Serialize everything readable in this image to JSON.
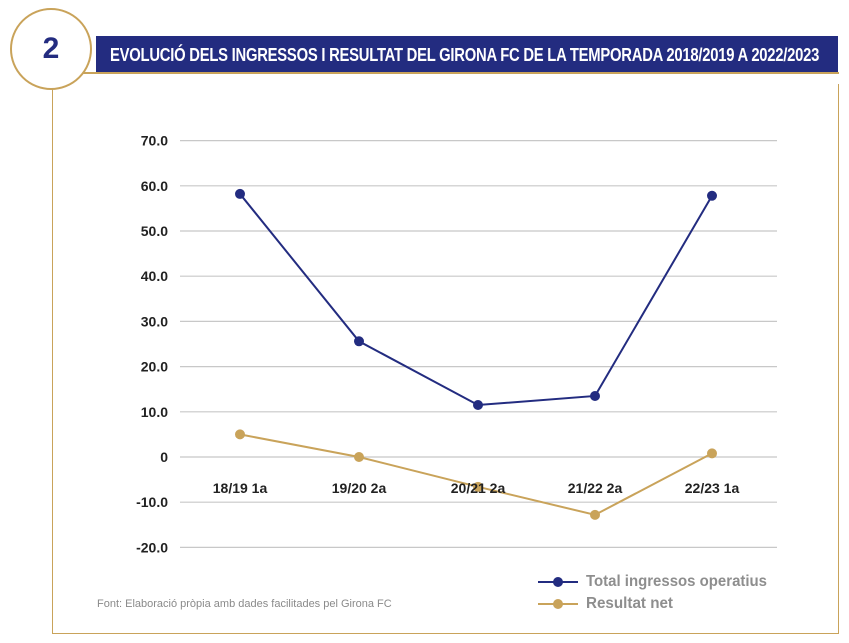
{
  "header": {
    "number": "2",
    "title": "EVOLUCIÓ DELS INGRESSOS I RESULTAT DEL GIRONA FC DE LA TEMPORADA 2018/2019 A 2022/2023"
  },
  "source": "Font: Elaboració pròpia amb dades facilitades pel Girona FC",
  "colors": {
    "navy": "#232c80",
    "gold": "#c9a35a",
    "grid": "#c8c8c8"
  },
  "chart_data": {
    "type": "line",
    "categories": [
      "18/19 1a",
      "19/20 2a",
      "20/21 2a",
      "21/22 2a",
      "22/23 1a"
    ],
    "series": [
      {
        "name": "Total ingressos operatius",
        "color": "#232c80",
        "values": [
          58.2,
          25.6,
          11.5,
          13.5,
          57.8
        ]
      },
      {
        "name": "Resultat net",
        "color": "#c9a35a",
        "values": [
          5.0,
          0.0,
          -6.6,
          -12.8,
          0.8
        ]
      }
    ],
    "yticks": [
      "70.0",
      "60.0",
      "50.0",
      "40.0",
      "30.0",
      "20.0",
      "10.0",
      "0",
      "-10.0",
      "-20.0"
    ],
    "ylim": [
      -20,
      70
    ],
    "grid": true,
    "legend": "bottom-right"
  }
}
